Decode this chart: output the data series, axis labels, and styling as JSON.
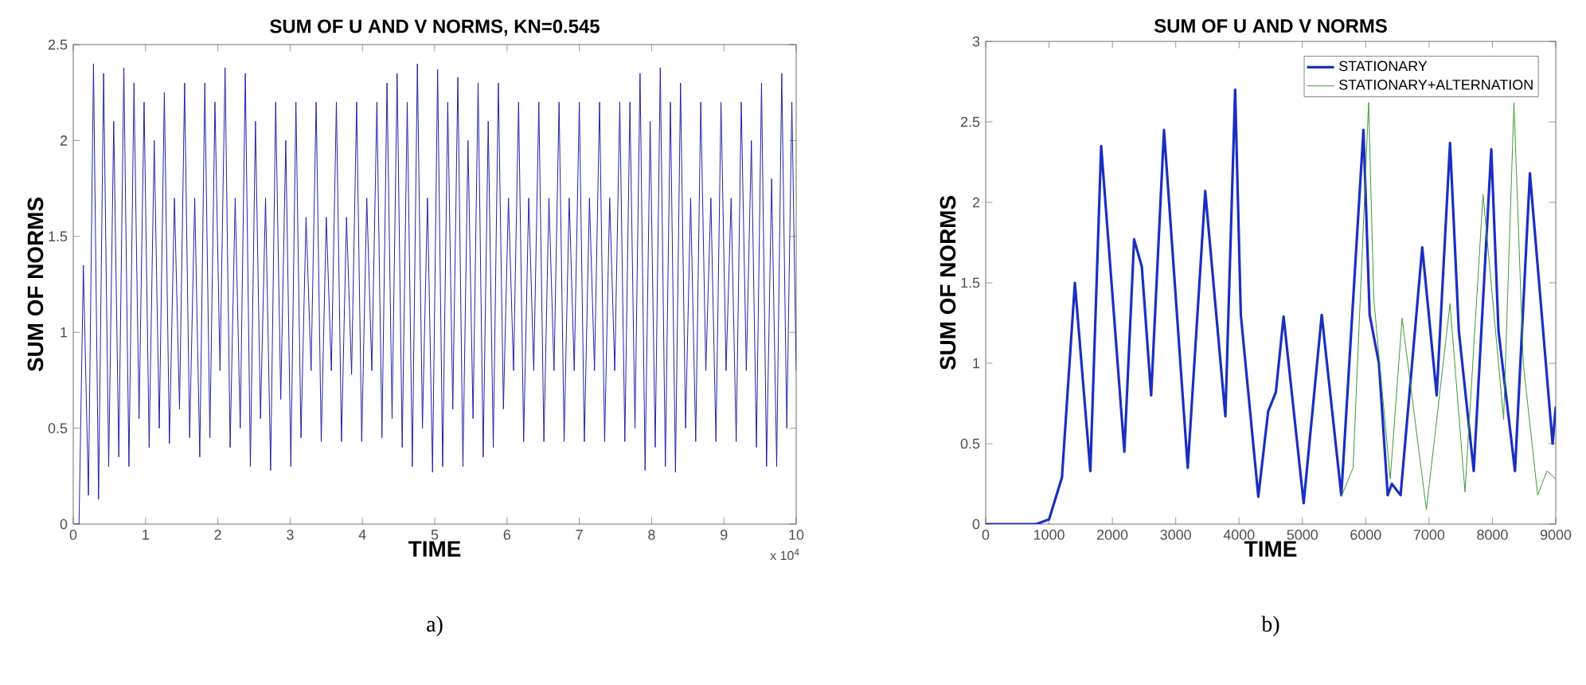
{
  "chart_data": [
    {
      "type": "line",
      "title": "SUM OF U AND V NORMS, KN=0.545",
      "xlabel": "TIME",
      "ylabel": "SUM OF NORMS",
      "xlim": [
        0,
        10
      ],
      "ylim": [
        0,
        2.5
      ],
      "xticks": [
        0,
        1,
        2,
        3,
        4,
        5,
        6,
        7,
        8,
        9,
        10
      ],
      "yticks": [
        0,
        0.5,
        1,
        1.5,
        2,
        2.5
      ],
      "annotations": [
        "x 10$^{4}$",
        "a)"
      ],
      "series": [
        {
          "color": "#2020a8",
          "x": [
            0,
            0.08,
            0.14,
            0.21,
            0.28,
            0.35,
            0.42,
            0.49,
            0.56,
            0.63,
            0.7,
            0.77,
            0.84,
            0.91,
            0.98,
            1.05,
            1.12,
            1.19,
            1.26,
            1.33,
            1.4,
            1.47,
            1.54,
            1.61,
            1.68,
            1.75,
            1.82,
            1.89,
            1.96,
            2.03,
            2.1,
            2.17,
            2.24,
            2.31,
            2.38,
            2.45,
            2.52,
            2.59,
            2.66,
            2.73,
            2.8,
            2.87,
            2.94,
            3.01,
            3.08,
            3.15,
            3.22,
            3.29,
            3.36,
            3.43,
            3.5,
            3.57,
            3.64,
            3.71,
            3.78,
            3.85,
            3.92,
            3.99,
            4.06,
            4.13,
            4.2,
            4.27,
            4.34,
            4.41,
            4.48,
            4.55,
            4.62,
            4.69,
            4.76,
            4.83,
            4.9,
            4.97,
            5.04,
            5.11,
            5.18,
            5.25,
            5.32,
            5.39,
            5.46,
            5.53,
            5.6,
            5.67,
            5.74,
            5.81,
            5.88,
            5.95,
            6.02,
            6.09,
            6.16,
            6.23,
            6.3,
            6.37,
            6.44,
            6.51,
            6.58,
            6.65,
            6.72,
            6.79,
            6.86,
            6.93,
            7,
            7.07,
            7.14,
            7.21,
            7.28,
            7.35,
            7.42,
            7.49,
            7.56,
            7.63,
            7.7,
            7.77,
            7.84,
            7.91,
            7.98,
            8.05,
            8.12,
            8.19,
            8.26,
            8.33,
            8.4,
            8.47,
            8.54,
            8.61,
            8.68,
            8.75,
            8.82,
            8.89,
            8.96,
            9.03,
            9.1,
            9.17,
            9.24,
            9.31,
            9.38,
            9.45,
            9.52,
            9.59,
            9.66,
            9.73,
            9.8,
            9.87,
            9.94,
            10
          ],
          "values": [
            0,
            0,
            1.35,
            0.15,
            2.4,
            0.13,
            2.35,
            0.3,
            2.1,
            0.35,
            2.38,
            0.3,
            2.3,
            0.55,
            2.2,
            0.4,
            2.0,
            0.5,
            2.25,
            0.42,
            1.7,
            0.6,
            2.3,
            0.45,
            1.7,
            0.35,
            2.3,
            0.45,
            2.2,
            0.8,
            2.38,
            0.4,
            1.7,
            0.5,
            2.35,
            0.3,
            2.1,
            0.55,
            1.7,
            0.28,
            2.2,
            0.65,
            2.0,
            0.3,
            2.2,
            0.45,
            1.6,
            0.8,
            2.2,
            0.43,
            1.6,
            0.8,
            2.2,
            0.43,
            1.6,
            0.78,
            2.2,
            0.43,
            1.7,
            0.8,
            2.2,
            0.45,
            2.3,
            0.55,
            2.35,
            0.4,
            2.2,
            0.3,
            2.4,
            0.5,
            1.7,
            0.27,
            2.37,
            0.3,
            2.2,
            0.6,
            2.33,
            0.3,
            2.0,
            0.55,
            2.3,
            0.35,
            2.1,
            0.4,
            2.3,
            0.6,
            1.7,
            0.8,
            2.2,
            0.43,
            1.7,
            0.8,
            2.2,
            0.43,
            1.7,
            0.8,
            2.2,
            0.43,
            1.7,
            0.8,
            2.2,
            0.43,
            1.7,
            0.8,
            2.2,
            0.43,
            1.7,
            0.8,
            2.2,
            0.43,
            2.2,
            0.5,
            2.35,
            0.28,
            2.1,
            0.4,
            2.38,
            0.3,
            2.2,
            0.27,
            2.3,
            0.5,
            1.7,
            0.43,
            2.2,
            0.8,
            1.7,
            0.43,
            2.2,
            0.8,
            1.7,
            0.43,
            2.2,
            0.8,
            2.0,
            0.4,
            2.3,
            0.3,
            1.8,
            0.3,
            2.35,
            0.5,
            2.2,
            0.8
          ]
        }
      ]
    },
    {
      "type": "line",
      "title": "SUM OF U AND V NORMS",
      "xlabel": "TIME",
      "ylabel": "SUM OF NORMS",
      "xlim": [
        0,
        9000
      ],
      "ylim": [
        0,
        3
      ],
      "xticks": [
        0,
        1000,
        2000,
        3000,
        4000,
        5000,
        6000,
        7000,
        8000,
        9000
      ],
      "yticks": [
        0,
        0.5,
        1,
        1.5,
        2,
        2.5,
        3
      ],
      "legend": "top right",
      "annotations": [
        "b)"
      ],
      "series": [
        {
          "name": "STATIONARY",
          "color": "#1a2fc0",
          "x": [
            0,
            800,
            1000,
            1204,
            1408,
            1652,
            1823,
            2189,
            2343,
            2465,
            2612,
            2815,
            3190,
            3466,
            3784,
            3938,
            4028,
            4304,
            4459,
            4581,
            4703,
            5020,
            5305,
            5614,
            5964,
            6062,
            6208,
            6347,
            6412,
            6550,
            6892,
            7120,
            7331,
            7470,
            7705,
            7982,
            8096,
            8356,
            8592,
            8950,
            9000
          ],
          "values": [
            0,
            0,
            0.03,
            0.29,
            1.5,
            0.33,
            2.35,
            0.45,
            1.77,
            1.6,
            0.8,
            2.45,
            0.35,
            2.07,
            0.67,
            2.7,
            1.3,
            0.17,
            0.7,
            0.82,
            1.29,
            0.13,
            1.3,
            0.18,
            2.45,
            1.3,
            1.0,
            0.18,
            0.25,
            0.18,
            1.72,
            0.8,
            2.37,
            1.2,
            0.33,
            2.33,
            1.2,
            0.33,
            2.18,
            0.5,
            0.73
          ]
        },
        {
          "name": "STATIONARY+ALTERNATION",
          "color": "#3a9a3a",
          "x": [
            5614,
            5800,
            6045,
            6127,
            6387,
            6574,
            6957,
            7331,
            7567,
            7852,
            8177,
            8340,
            8487,
            8714,
            8860,
            9000
          ],
          "values": [
            0.17,
            0.35,
            2.62,
            1.4,
            0.28,
            1.28,
            0.09,
            1.37,
            0.2,
            2.05,
            0.65,
            2.62,
            1.0,
            0.18,
            0.33,
            0.28
          ]
        }
      ]
    }
  ]
}
